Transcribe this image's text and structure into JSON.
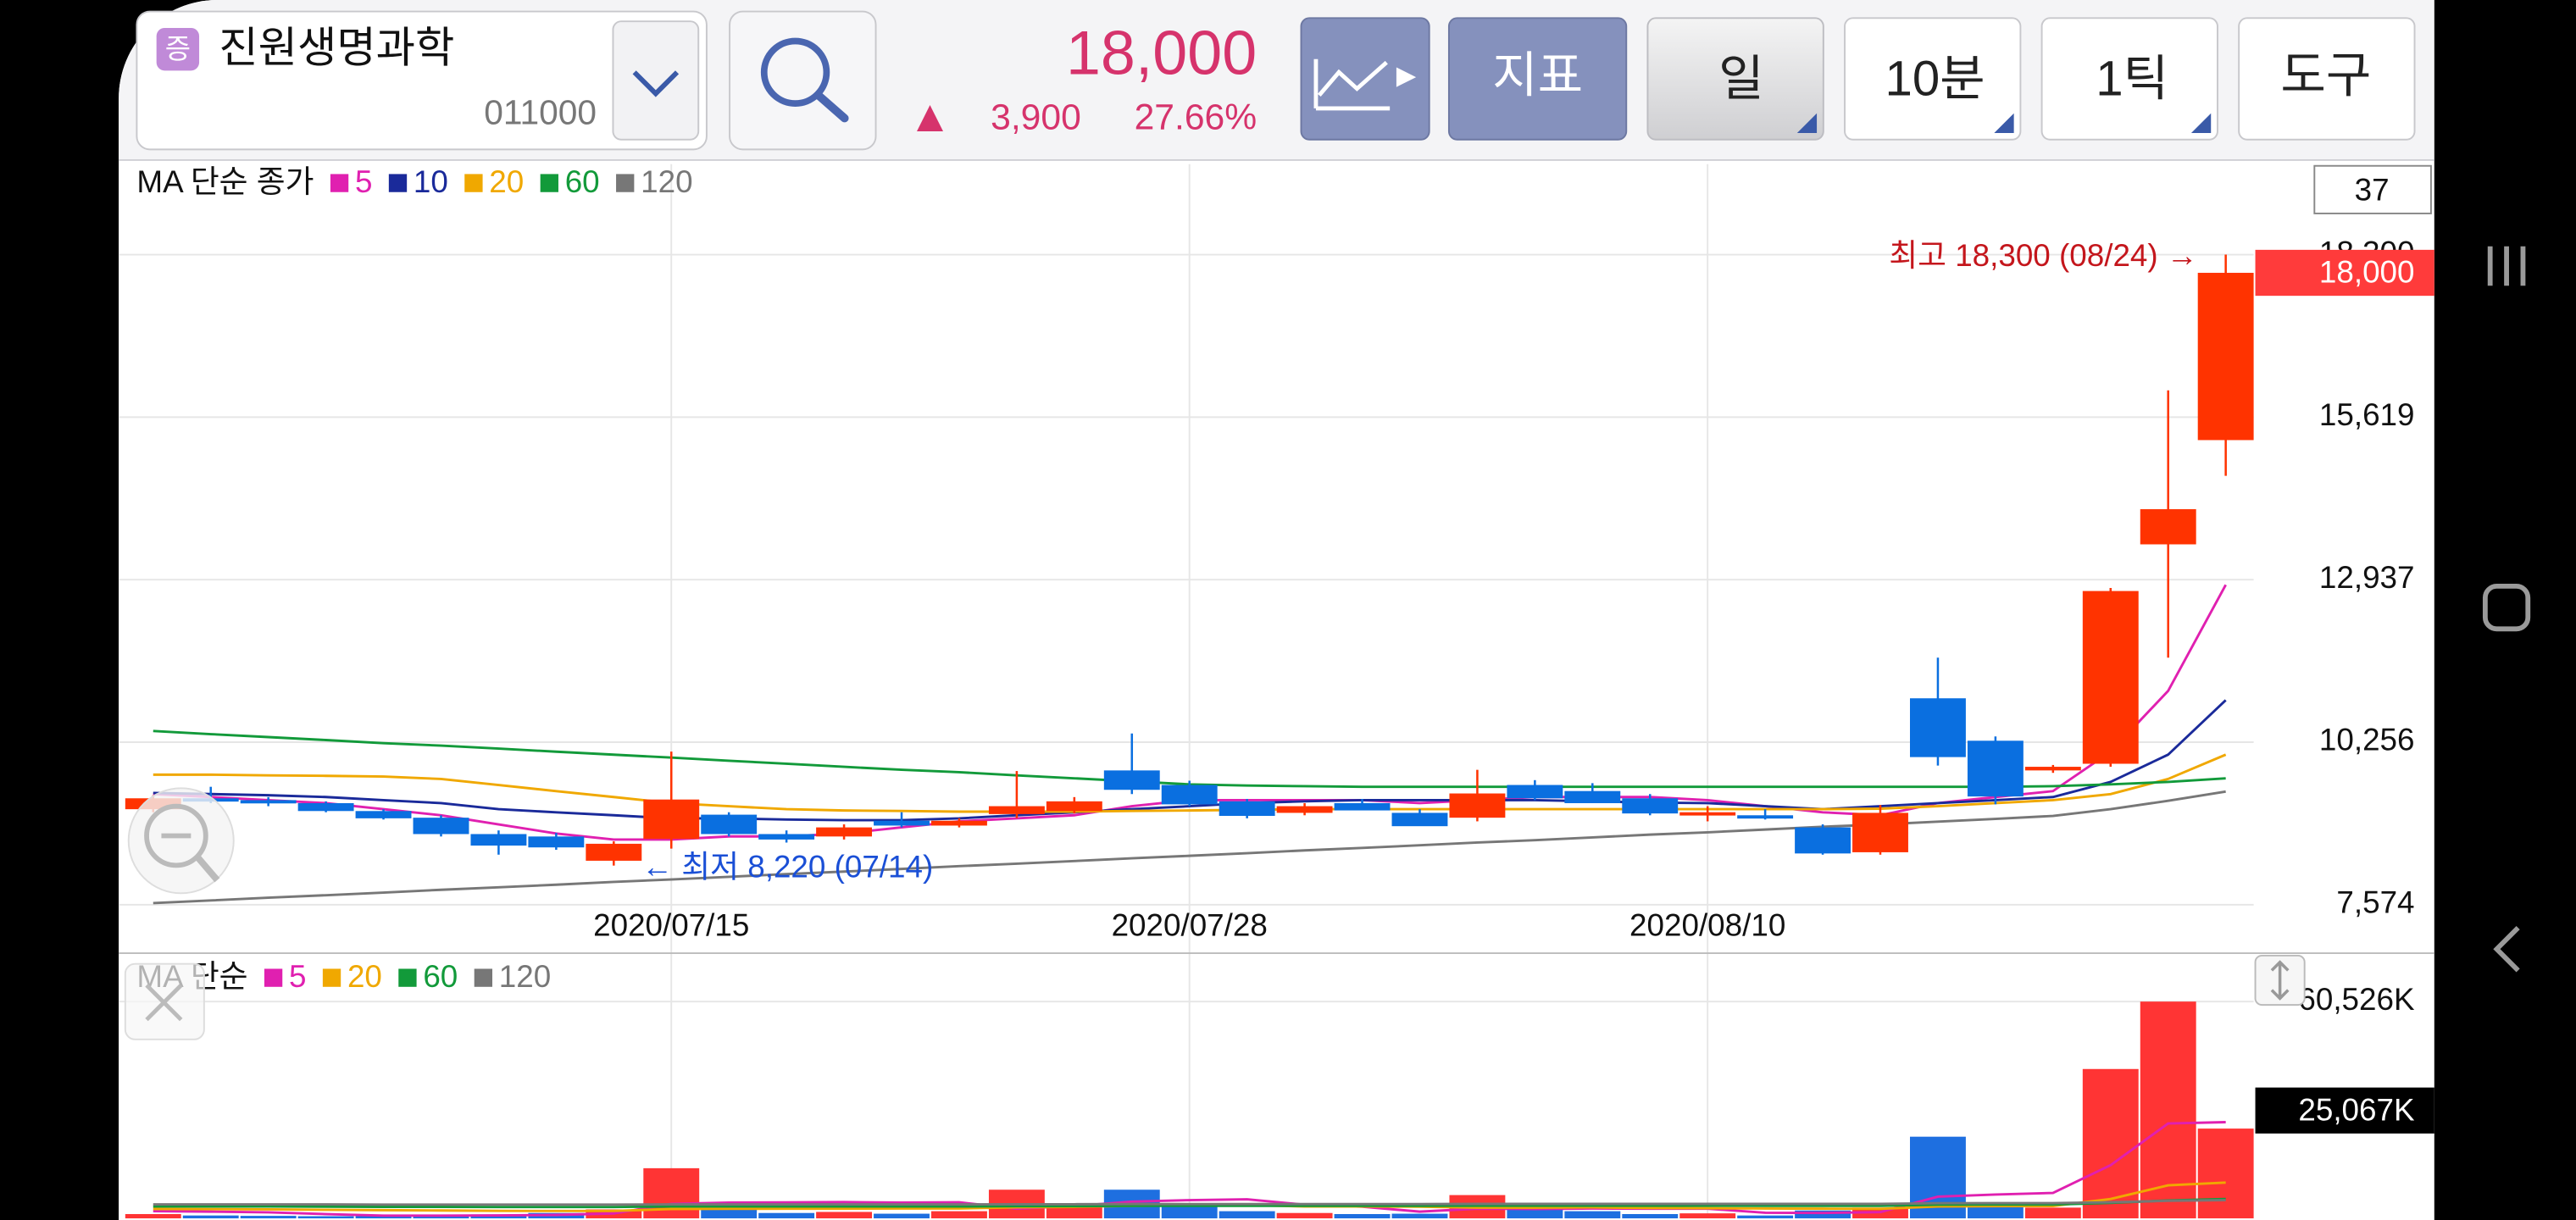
{
  "header": {
    "badge": "증",
    "name": "진원생명과학",
    "code": "011000",
    "price": "18,000",
    "change": "3,900",
    "change_pct": "27.66%",
    "buttons": [
      "지표",
      "일",
      "10분",
      "1틱",
      "도구"
    ],
    "visible_count": "37"
  },
  "chart_data": [
    {
      "type": "candlestick",
      "legend_title": "MA 단순 종가",
      "categories": [
        null,
        null,
        null,
        null,
        null,
        null,
        null,
        null,
        null,
        "2020/07/15",
        null,
        null,
        null,
        null,
        null,
        null,
        null,
        null,
        "2020/07/28",
        null,
        null,
        null,
        null,
        null,
        null,
        null,
        null,
        "2020/08/10",
        null,
        null,
        null,
        null,
        null,
        null,
        null,
        null,
        null
      ],
      "open": [
        9150,
        9330,
        9300,
        9250,
        9120,
        9010,
        8740,
        8700,
        8300,
        8660,
        9060,
        8740,
        8700,
        8960,
        8880,
        9070,
        9120,
        9790,
        9550,
        9280,
        9090,
        9250,
        9090,
        9010,
        9550,
        9450,
        9330,
        9050,
        9050,
        8850,
        8440,
        10980,
        10280,
        9790,
        9900,
        13520,
        15240
      ],
      "high": [
        9380,
        9520,
        9350,
        9280,
        9150,
        9050,
        8800,
        8760,
        8620,
        10100,
        9100,
        8800,
        8900,
        9100,
        9000,
        9780,
        9350,
        10400,
        9620,
        9320,
        9250,
        9320,
        9150,
        9800,
        9630,
        9580,
        9400,
        9200,
        9150,
        8900,
        9220,
        11650,
        10350,
        9880,
        12800,
        16060,
        18300
      ],
      "low": [
        9100,
        9250,
        9200,
        9100,
        8980,
        8700,
        8400,
        8480,
        8220,
        8500,
        8700,
        8600,
        8650,
        8850,
        8850,
        9000,
        9080,
        9400,
        9200,
        9000,
        9050,
        9150,
        8900,
        8950,
        9300,
        9250,
        9050,
        8950,
        8980,
        8400,
        8400,
        9870,
        9230,
        9750,
        9850,
        11650,
        14650
      ],
      "close": [
        9330,
        9300,
        9250,
        9120,
        9000,
        8740,
        8550,
        8520,
        8580,
        9310,
        8740,
        8650,
        8850,
        8880,
        8960,
        9200,
        9280,
        9470,
        9230,
        9040,
        9200,
        9130,
        8870,
        9410,
        9330,
        9250,
        9080,
        9100,
        9000,
        8420,
        9090,
        10010,
        9360,
        9850,
        12750,
        14100,
        18000
      ],
      "close_value_labels": [
        null,
        null,
        null,
        null,
        null,
        null,
        null,
        null,
        null,
        null,
        null,
        null,
        null,
        null,
        null,
        null,
        null,
        null,
        null,
        null,
        null,
        null,
        null,
        null,
        null,
        null,
        null,
        null,
        null,
        null,
        null,
        null,
        null,
        null,
        null,
        null,
        "18,000"
      ],
      "up_color": "#ff3300",
      "down_color": "#0a6fe0",
      "series": [
        {
          "name": "5",
          "color": "#e020b0",
          "values": [
            9400,
            9350,
            9300,
            9250,
            9150,
            9050,
            8900,
            8750,
            8650,
            8650,
            8700,
            8700,
            8750,
            8850,
            8950,
            9000,
            9050,
            9200,
            9300,
            9300,
            9300,
            9300,
            9250,
            9300,
            9350,
            9350,
            9350,
            9300,
            9200,
            9100,
            9050,
            9250,
            9350,
            9450,
            10100,
            11100,
            12850
          ]
        },
        {
          "name": "10",
          "color": "#1a2a9a",
          "values": [
            9420,
            9400,
            9380,
            9350,
            9300,
            9250,
            9150,
            9100,
            9050,
            9000,
            9000,
            8980,
            8970,
            8970,
            9000,
            9050,
            9100,
            9150,
            9200,
            9250,
            9280,
            9300,
            9300,
            9300,
            9300,
            9280,
            9260,
            9250,
            9200,
            9150,
            9200,
            9250,
            9300,
            9350,
            9600,
            10050,
            10950
          ]
        },
        {
          "name": "20",
          "color": "#f0a800",
          "values": [
            9720,
            9720,
            9710,
            9700,
            9690,
            9650,
            9550,
            9450,
            9350,
            9250,
            9200,
            9150,
            9130,
            9120,
            9110,
            9110,
            9110,
            9120,
            9130,
            9140,
            9150,
            9150,
            9150,
            9150,
            9150,
            9150,
            9150,
            9150,
            9150,
            9150,
            9160,
            9200,
            9250,
            9300,
            9400,
            9650,
            10050
          ]
        },
        {
          "name": "60",
          "color": "#129a3a",
          "values": [
            10440,
            10390,
            10340,
            10290,
            10240,
            10200,
            10150,
            10100,
            10050,
            10000,
            9950,
            9900,
            9850,
            9800,
            9760,
            9710,
            9660,
            9610,
            9560,
            9540,
            9530,
            9520,
            9520,
            9520,
            9520,
            9520,
            9520,
            9520,
            9520,
            9520,
            9520,
            9520,
            9520,
            9530,
            9560,
            9600,
            9660
          ]
        },
        {
          "name": "120",
          "color": "#777777",
          "values": [
            7600,
            7645,
            7690,
            7730,
            7775,
            7820,
            7860,
            7905,
            7950,
            7990,
            8035,
            8080,
            8120,
            8165,
            8210,
            8250,
            8295,
            8340,
            8380,
            8425,
            8470,
            8510,
            8555,
            8600,
            8640,
            8685,
            8730,
            8770,
            8815,
            8860,
            8900,
            8945,
            8990,
            9040,
            9150,
            9290,
            9440
          ]
        }
      ],
      "ylim": [
        7574,
        19792
      ],
      "yticks": [
        {
          "value": 7574,
          "label": "7,574"
        },
        {
          "value": 10256,
          "label": "10,256"
        },
        {
          "value": 12937,
          "label": "12,937"
        },
        {
          "value": 15619,
          "label": "15,619"
        },
        {
          "value": 18300,
          "label": "18,300"
        }
      ],
      "annotations": [
        "최고 18,300 (08/24) →",
        "← 최저 8,220 (07/14)"
      ],
      "grid": true
    },
    {
      "type": "bar",
      "legend_title": "MA 단순",
      "values": [
        1200,
        800,
        700,
        600,
        700,
        1000,
        1100,
        1500,
        2500,
        14000,
        2800,
        1500,
        1800,
        1300,
        2000,
        8000,
        4000,
        8000,
        3500,
        2000,
        1500,
        1200,
        1300,
        6500,
        2500,
        2000,
        1200,
        1400,
        800,
        2200,
        3000,
        22800,
        4500,
        3000,
        41700,
        60526,
        25067
      ],
      "value_labels": [
        null,
        null,
        null,
        null,
        null,
        null,
        null,
        null,
        null,
        null,
        null,
        null,
        null,
        null,
        null,
        null,
        null,
        null,
        null,
        null,
        null,
        null,
        null,
        null,
        null,
        null,
        null,
        null,
        null,
        null,
        null,
        null,
        null,
        null,
        null,
        null,
        "25,067K"
      ],
      "up_color": "#ff3434",
      "down_color": "#1e6fe0",
      "series": [
        {
          "name": "5",
          "color": "#e020b0",
          "values": [
            2000,
            1900,
            1700,
            1200,
            800,
            760,
            820,
            980,
            1360,
            4020,
            4380,
            4460,
            4520,
            4420,
            4480,
            2720,
            3420,
            4660,
            5100,
            5300,
            3800,
            3240,
            1900,
            2700,
            2600,
            2760,
            2700,
            2720,
            1580,
            1520,
            1720,
            6040,
            6660,
            7100,
            14840,
            26500,
            26860
          ]
        },
        {
          "name": "20",
          "color": "#f0a800",
          "values": [
            2600,
            2550,
            2500,
            2400,
            2300,
            2200,
            2100,
            2050,
            2050,
            2600,
            2650,
            2700,
            2700,
            2750,
            2750,
            3050,
            3200,
            3500,
            3600,
            3700,
            3300,
            3300,
            3250,
            3000,
            3000,
            3050,
            2900,
            2850,
            2750,
            2700,
            2650,
            3300,
            3400,
            3450,
            5400,
            9200,
            10000
          ]
        },
        {
          "name": "60",
          "color": "#129a3a",
          "values": [
            3300,
            3300,
            3280,
            3250,
            3230,
            3200,
            3180,
            3150,
            3150,
            3300,
            3300,
            3300,
            3300,
            3300,
            3300,
            3400,
            3400,
            3500,
            3500,
            3500,
            3500,
            3500,
            3500,
            3550,
            3550,
            3550,
            3550,
            3550,
            3500,
            3500,
            3500,
            3800,
            3850,
            3850,
            4300,
            5000,
            5400
          ]
        },
        {
          "name": "120",
          "color": "#777777",
          "values": [
            3900,
            3900,
            3880,
            3880,
            3860,
            3860,
            3850,
            3850,
            3840,
            3900,
            3900,
            3900,
            3900,
            3900,
            3900,
            3950,
            3950,
            4000,
            4000,
            4000,
            4000,
            4000,
            4000,
            4050,
            4050,
            4050,
            4050,
            4050,
            4050,
            4050,
            4050,
            4200,
            4250,
            4250,
            4500,
            4900,
            5100
          ]
        }
      ],
      "ylim": [
        0,
        65100
      ],
      "yticks": [
        {
          "value": 60526,
          "label": "60,526K"
        }
      ],
      "grid": true
    }
  ]
}
